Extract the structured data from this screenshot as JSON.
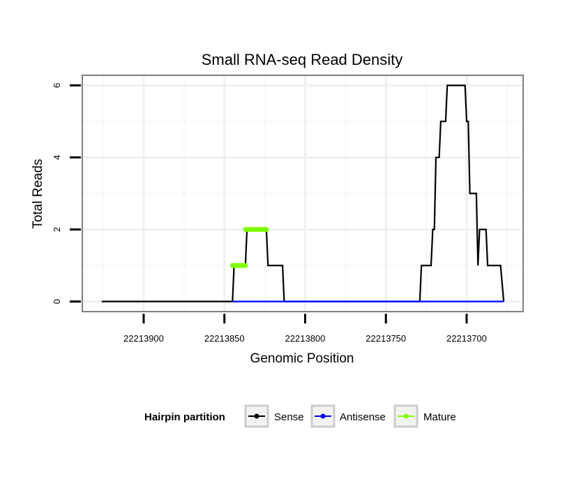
{
  "chart_data": {
    "type": "line",
    "title": "Small RNA-seq Read Density",
    "xlabel": "Genomic Position",
    "ylabel": "Total Reads",
    "x_reversed": true,
    "xlim": [
      22213938,
      22213665
    ],
    "ylim": [
      -0.28,
      6.28
    ],
    "x_ticks": [
      22213900,
      22213850,
      22213800,
      22213750,
      22213700
    ],
    "x_tick_labels": [
      "22213900",
      "22213850",
      "22213800",
      "22213750",
      "22213700"
    ],
    "x_minor_grid": [
      22213925,
      22213875,
      22213825,
      22213775,
      22213725,
      22213675
    ],
    "y_ticks": [
      0,
      2,
      4,
      6
    ],
    "y_tick_labels": [
      "0",
      "2",
      "4",
      "6"
    ],
    "y_minor_grid": [
      1,
      3,
      5
    ],
    "grid": true,
    "legend": {
      "title": "Hairpin partition",
      "position": "bottom",
      "entries": [
        {
          "label": "Sense",
          "color": "#000000"
        },
        {
          "label": "Antisense",
          "color": "#0000ff"
        },
        {
          "label": "Mature",
          "color": "#7fff00"
        }
      ]
    },
    "series": [
      {
        "name": "Sense",
        "color": "#000000",
        "points": [
          [
            22213926,
            0
          ],
          [
            22213845,
            0
          ],
          [
            22213844,
            1
          ],
          [
            22213837,
            1
          ],
          [
            22213836,
            2
          ],
          [
            22213824,
            2
          ],
          [
            22213823,
            1
          ],
          [
            22213814,
            1
          ],
          [
            22213813,
            0
          ],
          [
            22213729,
            0
          ],
          [
            22213728,
            1
          ],
          [
            22213722,
            1
          ],
          [
            22213721,
            2
          ],
          [
            22213720,
            2
          ],
          [
            22213719,
            4
          ],
          [
            22213717,
            4
          ],
          [
            22213716,
            5
          ],
          [
            22213713,
            5
          ],
          [
            22213712,
            6
          ],
          [
            22213701,
            6
          ],
          [
            22213700,
            5
          ],
          [
            22213699,
            5
          ],
          [
            22213698,
            3
          ],
          [
            22213694,
            3
          ],
          [
            22213693,
            1
          ],
          [
            22213692,
            2
          ],
          [
            22213688,
            2
          ],
          [
            22213687,
            1
          ],
          [
            22213679,
            1
          ],
          [
            22213677,
            0
          ]
        ]
      },
      {
        "name": "Antisense",
        "color": "#0000ff",
        "points": [
          [
            22213845,
            0
          ],
          [
            22213813,
            0
          ],
          [
            22213729,
            0
          ],
          [
            22213677,
            0
          ]
        ]
      },
      {
        "name": "Mature",
        "color": "#7fff00",
        "segments": [
          {
            "x1": 22213845,
            "x2": 22213837,
            "y": 1
          },
          {
            "x1": 22213837,
            "x2": 22213824,
            "y": 2
          }
        ]
      }
    ]
  }
}
